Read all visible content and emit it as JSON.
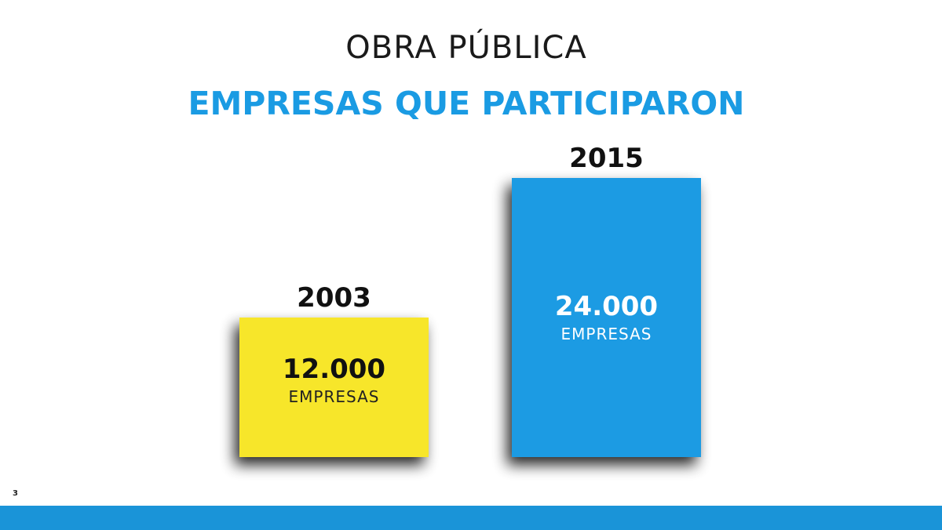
{
  "header": {
    "title": "OBRA PÚBLICA",
    "subtitle": "EMPRESAS QUE PARTICIPARON"
  },
  "colors": {
    "accent_blue": "#1a9be3",
    "bar_yellow": "#f7e62b",
    "bar_blue": "#1a9be3",
    "band_blue": "#1a94d8"
  },
  "chart_data": {
    "type": "bar",
    "title": "EMPRESAS QUE PARTICIPARON",
    "categories": [
      "2003",
      "2015"
    ],
    "values": [
      12000,
      24000
    ],
    "value_labels": [
      "12.000",
      "24.000"
    ],
    "unit_label": "EMPRESAS",
    "bar_colors": [
      "#f7e62b",
      "#1a9be3"
    ],
    "ylim": [
      0,
      24000
    ],
    "grid": false,
    "legend": "none"
  },
  "footer": {
    "page_number": "3"
  }
}
